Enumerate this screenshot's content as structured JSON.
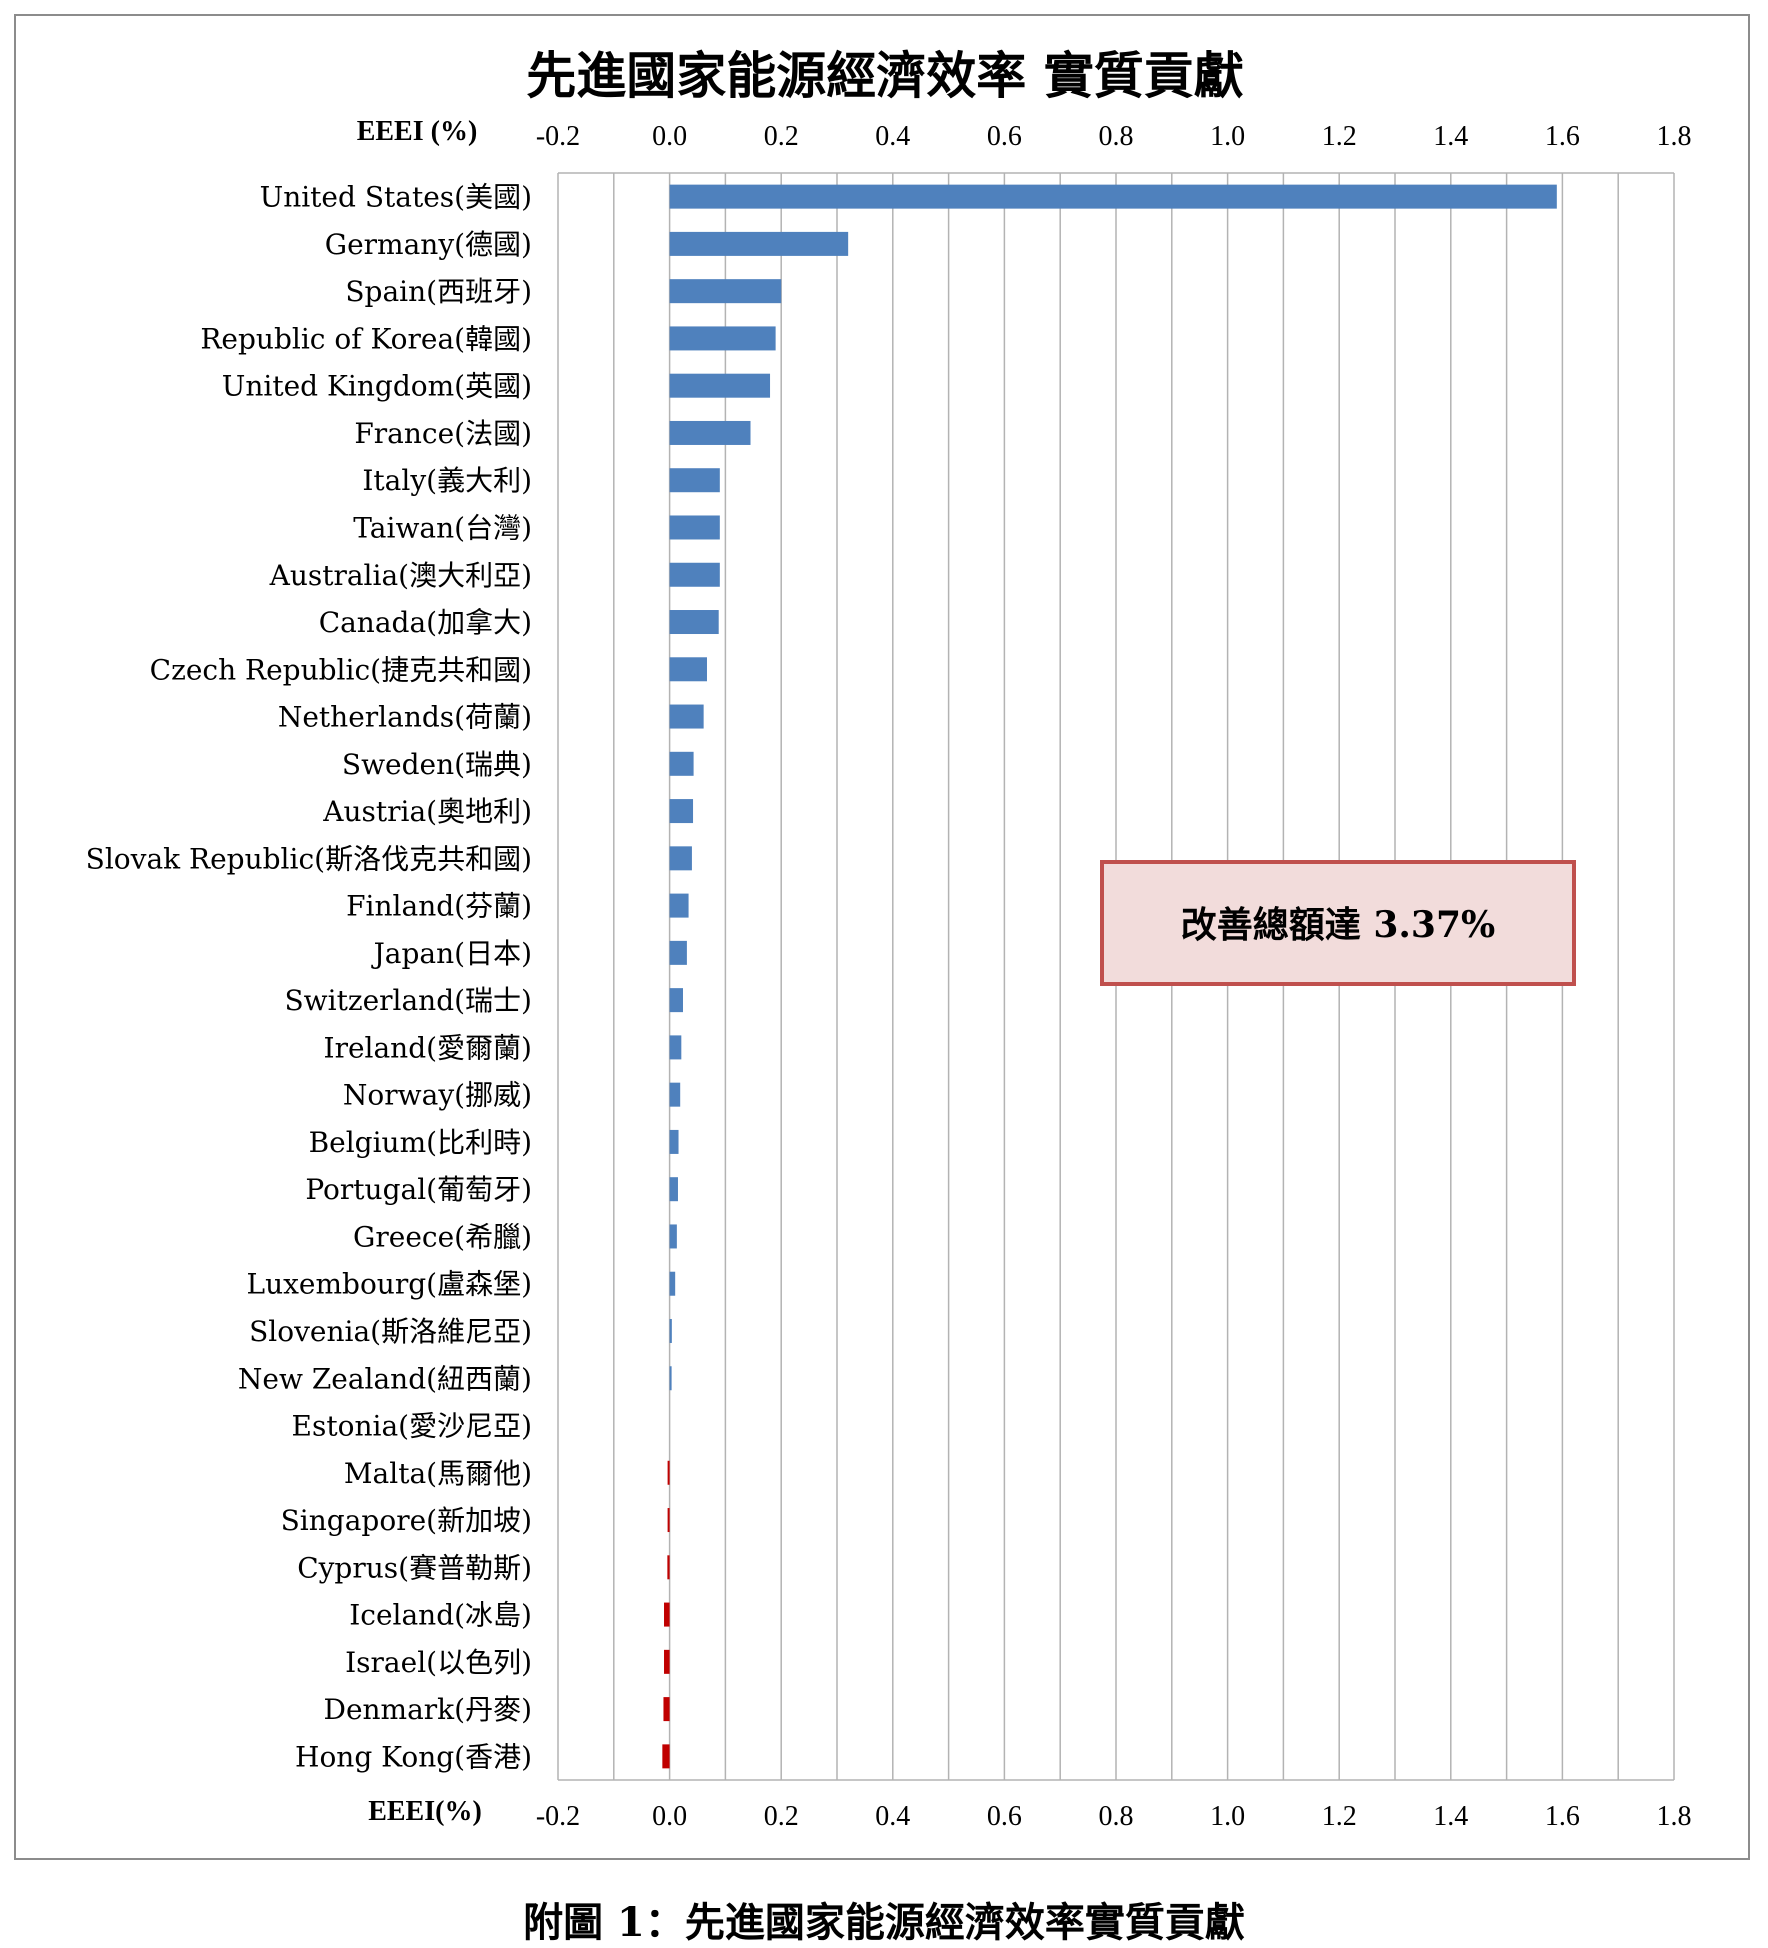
{
  "caption": "附圖 1：先進國家能源經濟效率實質貢獻",
  "annotation": {
    "text": "改善總額達 3.37%",
    "background": "#f2dcdb",
    "border": "#c0504d"
  },
  "colors": {
    "positive": "#4f81bd",
    "negative": "#c00000",
    "grid": "#b3b3b3"
  },
  "chart_data": {
    "type": "bar",
    "orientation": "horizontal",
    "title": "先進國家能源經濟效率 實質貢獻",
    "xlabel_top": "EEEI (%)",
    "xlabel_bottom": "EEEI(%)",
    "xlim": [
      -0.2,
      1.8
    ],
    "xticks": [
      "-0.2",
      "0.0",
      "0.2",
      "0.4",
      "0.6",
      "0.8",
      "1.0",
      "1.2",
      "1.4",
      "1.6",
      "1.8"
    ],
    "grid": true,
    "categories": [
      "United States(美國)",
      "Germany(德國)",
      "Spain(西班牙)",
      "Republic of Korea(韓國)",
      "United Kingdom(英國)",
      "France(法國)",
      "Italy(義大利)",
      "Taiwan(台灣)",
      "Australia(澳大利亞)",
      "Canada(加拿大)",
      "Czech Republic(捷克共和國)",
      "Netherlands(荷蘭)",
      "Sweden(瑞典)",
      "Austria(奧地利)",
      "Slovak Republic(斯洛伐克共和國)",
      "Finland(芬蘭)",
      "Japan(日本)",
      "Switzerland(瑞士)",
      "Ireland(愛爾蘭)",
      "Norway(挪威)",
      "Belgium(比利時)",
      "Portugal(葡萄牙)",
      "Greece(希臘)",
      "Luxembourg(盧森堡)",
      "Slovenia(斯洛維尼亞)",
      "New Zealand(紐西蘭)",
      "Estonia(愛沙尼亞)",
      "Malta(馬爾他)",
      "Singapore(新加坡)",
      "Cyprus(賽普勒斯)",
      "Iceland(冰島)",
      "Israel(以色列)",
      "Denmark(丹麥)",
      "Hong Kong(香港)"
    ],
    "values": [
      1.59,
      0.32,
      0.2,
      0.19,
      0.18,
      0.145,
      0.09,
      0.09,
      0.09,
      0.088,
      0.067,
      0.061,
      0.043,
      0.042,
      0.04,
      0.034,
      0.031,
      0.024,
      0.021,
      0.019,
      0.016,
      0.015,
      0.013,
      0.01,
      0.004,
      0.003,
      0.0,
      -0.003,
      -0.003,
      -0.004,
      -0.01,
      -0.01,
      -0.011,
      -0.013
    ]
  }
}
